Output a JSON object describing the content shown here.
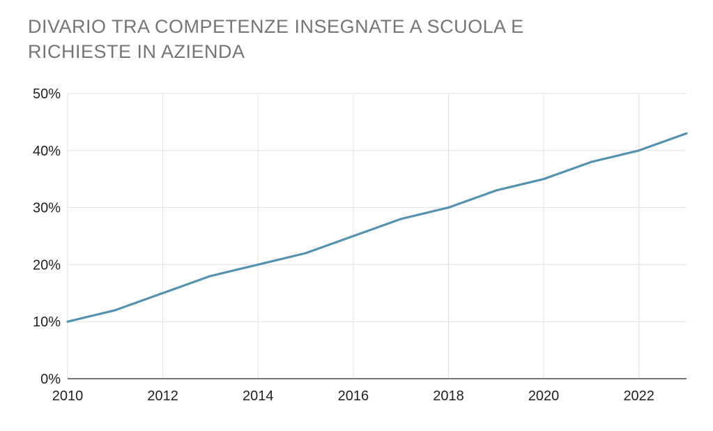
{
  "header": {
    "title_lines": [
      "DIVARIO TRA COMPETENZE INSEGNATE A SCUOLA E",
      "RICHIESTE IN AZIENDA"
    ],
    "title_color": "#757575"
  },
  "chart_data": {
    "type": "line",
    "title": "DIVARIO TRA COMPETENZE INSEGNATE A SCUOLA E RICHIESTE IN AZIENDA",
    "x": [
      2010,
      2011,
      2012,
      2013,
      2014,
      2015,
      2016,
      2017,
      2018,
      2019,
      2020,
      2021,
      2022,
      2023
    ],
    "values": [
      10,
      12,
      15,
      18,
      20,
      22,
      25,
      28,
      30,
      33,
      35,
      38,
      40,
      43
    ],
    "unit": "%",
    "xlabel": "",
    "ylabel": "",
    "xlim": [
      2010,
      2023
    ],
    "ylim": [
      0,
      50
    ],
    "y_ticks": [
      0,
      10,
      20,
      30,
      40,
      50
    ],
    "y_tick_labels": [
      "0%",
      "10%",
      "20%",
      "30%",
      "40%",
      "50%"
    ],
    "x_ticks": [
      2010,
      2012,
      2014,
      2016,
      2018,
      2020,
      2022
    ],
    "x_tick_labels": [
      "2010",
      "2012",
      "2014",
      "2016",
      "2018",
      "2020",
      "2022"
    ],
    "grid": true,
    "legend": false,
    "colors": {
      "line": "#5592b0",
      "grid": "#e3e3e3",
      "axis": "#757575",
      "tick_label": "#222222",
      "background": "#ffffff"
    }
  }
}
